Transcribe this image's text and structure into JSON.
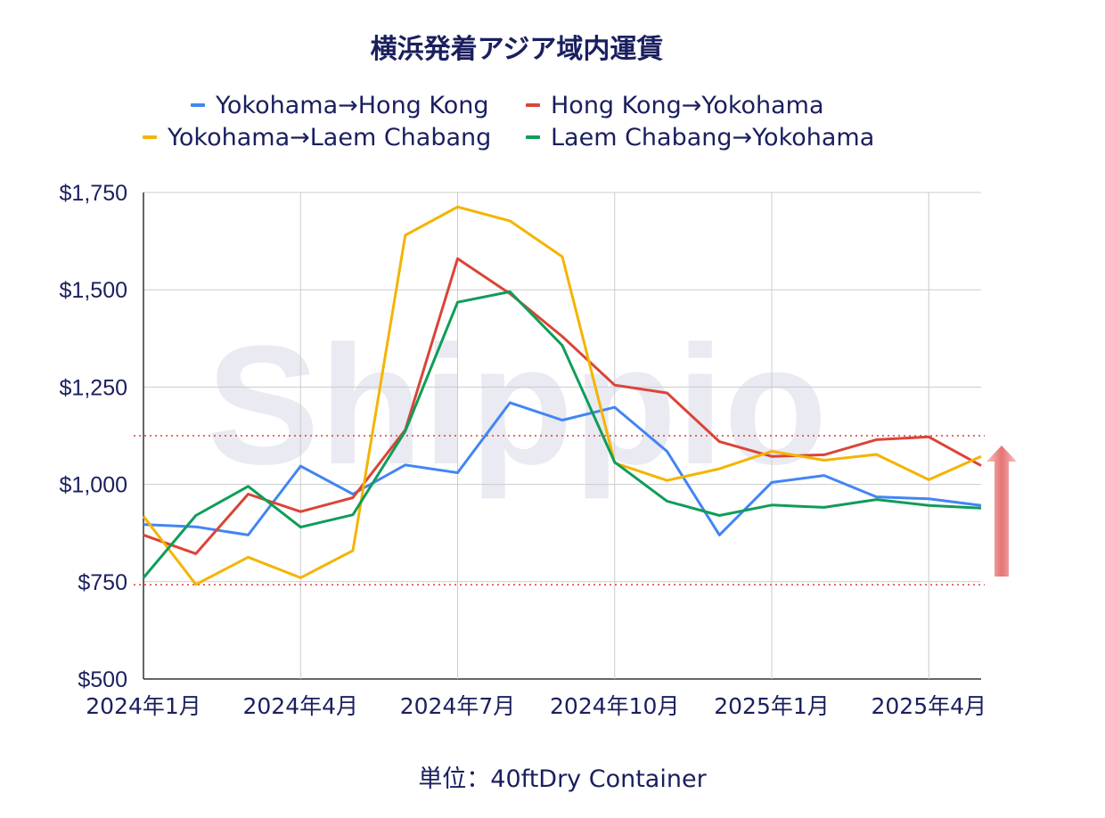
{
  "watermark": "Shippio",
  "unit_label": "単位：40ftDry Container",
  "arrow_color": "#e57373",
  "chart_data": {
    "type": "line",
    "title": "横浜発着アジア域内運賃",
    "x": [
      "2024年1月",
      "2024年2月",
      "2024年3月",
      "2024年4月",
      "2024年5月",
      "2024年6月",
      "2024年7月",
      "2024年8月",
      "2024年9月",
      "2024年10月",
      "2024年11月",
      "2024年12月",
      "2025年1月",
      "2025年2月",
      "2025年3月",
      "2025年4月",
      "2025年5月"
    ],
    "x_tick_labels": [
      "2024年1月",
      "2024年4月",
      "2024年7月",
      "2024年10月",
      "2025年1月",
      "2025年4月"
    ],
    "x_tick_index": [
      0,
      3,
      6,
      9,
      12,
      15
    ],
    "y_ticks": [
      500,
      750,
      1000,
      1250,
      1500,
      1750
    ],
    "y_tick_labels": [
      "$500",
      "$750",
      "$1,000",
      "$1,250",
      "$1,500",
      "$1,750"
    ],
    "ylim": [
      500,
      1750
    ],
    "grid": true,
    "legend_position": "top",
    "reference_lines": [
      1125,
      742
    ],
    "reference_line_color": "#e53935",
    "series": [
      {
        "name": "Yokohama→Hong Kong",
        "color": "#4285f4",
        "values": [
          897,
          891,
          870,
          1047,
          975,
          1050,
          1030,
          1210,
          1165,
          1198,
          1085,
          870,
          1005,
          1023,
          968,
          963,
          946
        ]
      },
      {
        "name": "Hong Kong→Yokohama",
        "color": "#db4437",
        "values": [
          870,
          822,
          975,
          930,
          966,
          1140,
          1580,
          1490,
          1380,
          1255,
          1235,
          1110,
          1072,
          1076,
          1115,
          1122,
          1048
        ]
      },
      {
        "name": "Yokohama→Laem Chabang",
        "color": "#f4b400",
        "values": [
          918,
          743,
          813,
          760,
          830,
          1640,
          1713,
          1677,
          1585,
          1055,
          1010,
          1040,
          1085,
          1062,
          1077,
          1012,
          1072
        ]
      },
      {
        "name": "Laem Chabang→Yokohama",
        "color": "#0f9d58",
        "values": [
          760,
          920,
          995,
          890,
          922,
          1137,
          1468,
          1495,
          1357,
          1057,
          957,
          920,
          947,
          941,
          961,
          946,
          939
        ]
      }
    ]
  }
}
